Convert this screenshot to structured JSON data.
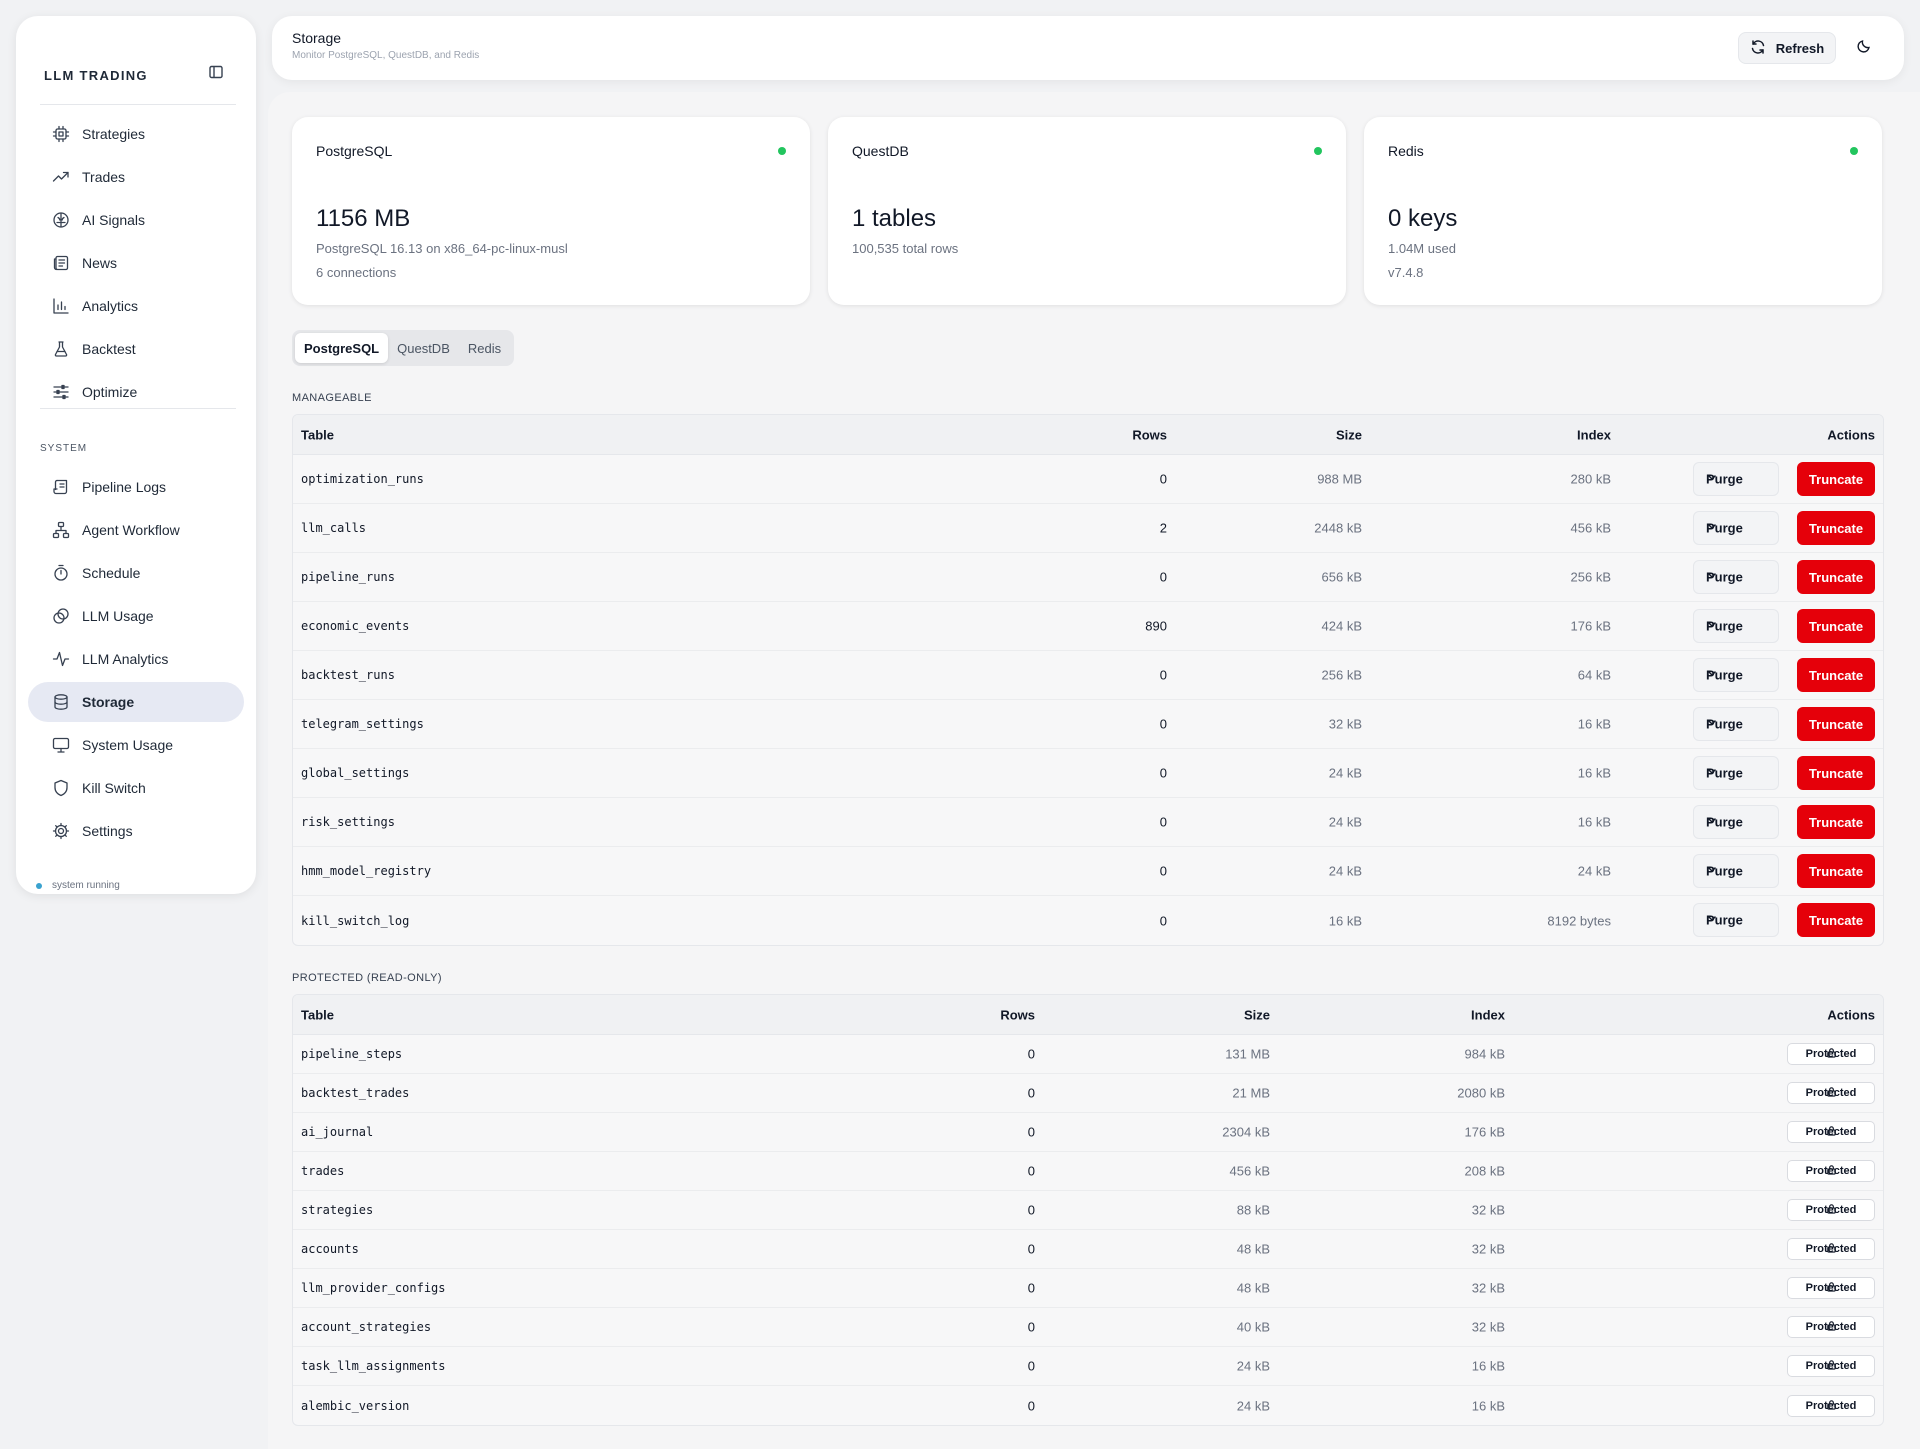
{
  "sidebar": {
    "brand": "LLM TRADING",
    "items": [
      {
        "label": "Strategies",
        "icon": "cpu-icon"
      },
      {
        "label": "Trades",
        "icon": "trend-up-icon"
      },
      {
        "label": "AI Signals",
        "icon": "brain-icon"
      },
      {
        "label": "News",
        "icon": "newspaper-icon"
      },
      {
        "label": "Analytics",
        "icon": "bar-chart-icon"
      },
      {
        "label": "Backtest",
        "icon": "flask-icon"
      },
      {
        "label": "Optimize",
        "icon": "sliders-icon"
      }
    ],
    "system_label": "SYSTEM",
    "system_items": [
      {
        "label": "Pipeline Logs",
        "icon": "scroll-icon"
      },
      {
        "label": "Agent Workflow",
        "icon": "workflow-icon"
      },
      {
        "label": "Schedule",
        "icon": "timer-icon"
      },
      {
        "label": "LLM Usage",
        "icon": "coins-icon"
      },
      {
        "label": "LLM Analytics",
        "icon": "activity-icon"
      },
      {
        "label": "Storage",
        "icon": "database-icon",
        "active": true
      },
      {
        "label": "System Usage",
        "icon": "monitor-icon"
      },
      {
        "label": "Kill Switch",
        "icon": "shield-icon"
      },
      {
        "label": "Settings",
        "icon": "gear-icon"
      }
    ],
    "status": "system running"
  },
  "header": {
    "title": "Storage",
    "subtitle": "Monitor PostgreSQL, QuestDB, and Redis",
    "refresh_label": "Refresh"
  },
  "cards": [
    {
      "name": "PostgreSQL",
      "value": "1156 MB",
      "line1": "PostgreSQL 16.13 on x86_64-pc-linux-musl",
      "line2": "6 connections",
      "status_color": "#22c55e"
    },
    {
      "name": "QuestDB",
      "value": "1 tables",
      "line1": "100,535 total rows",
      "line2": "",
      "status_color": "#22c55e"
    },
    {
      "name": "Redis",
      "value": "0 keys",
      "line1": "1.04M used",
      "line2": "v7.4.8",
      "status_color": "#22c55e"
    }
  ],
  "tabs": [
    "PostgreSQL",
    "QuestDB",
    "Redis"
  ],
  "manageable": {
    "title": "MANAGEABLE",
    "headers": {
      "table": "Table",
      "rows": "Rows",
      "size": "Size",
      "index": "Index",
      "actions": "Actions"
    },
    "purge_label": "Purge",
    "truncate_label": "Truncate",
    "rows": [
      {
        "table": "optimization_runs",
        "rows": "0",
        "size": "988 MB",
        "index": "280 kB"
      },
      {
        "table": "llm_calls",
        "rows": "2",
        "size": "2448 kB",
        "index": "456 kB"
      },
      {
        "table": "pipeline_runs",
        "rows": "0",
        "size": "656 kB",
        "index": "256 kB"
      },
      {
        "table": "economic_events",
        "rows": "890",
        "size": "424 kB",
        "index": "176 kB"
      },
      {
        "table": "backtest_runs",
        "rows": "0",
        "size": "256 kB",
        "index": "64 kB"
      },
      {
        "table": "telegram_settings",
        "rows": "0",
        "size": "32 kB",
        "index": "16 kB"
      },
      {
        "table": "global_settings",
        "rows": "0",
        "size": "24 kB",
        "index": "16 kB"
      },
      {
        "table": "risk_settings",
        "rows": "0",
        "size": "24 kB",
        "index": "16 kB"
      },
      {
        "table": "hmm_model_registry",
        "rows": "0",
        "size": "24 kB",
        "index": "24 kB"
      },
      {
        "table": "kill_switch_log",
        "rows": "0",
        "size": "16 kB",
        "index": "8192 bytes"
      }
    ]
  },
  "protected": {
    "title": "PROTECTED (READ-ONLY)",
    "headers": {
      "table": "Table",
      "rows": "Rows",
      "size": "Size",
      "index": "Index",
      "actions": "Actions"
    },
    "badge_label": "Protected",
    "rows": [
      {
        "table": "pipeline_steps",
        "rows": "0",
        "size": "131 MB",
        "index": "984 kB"
      },
      {
        "table": "backtest_trades",
        "rows": "0",
        "size": "21 MB",
        "index": "2080 kB"
      },
      {
        "table": "ai_journal",
        "rows": "0",
        "size": "2304 kB",
        "index": "176 kB"
      },
      {
        "table": "trades",
        "rows": "0",
        "size": "456 kB",
        "index": "208 kB"
      },
      {
        "table": "strategies",
        "rows": "0",
        "size": "88 kB",
        "index": "32 kB"
      },
      {
        "table": "accounts",
        "rows": "0",
        "size": "48 kB",
        "index": "32 kB"
      },
      {
        "table": "llm_provider_configs",
        "rows": "0",
        "size": "48 kB",
        "index": "32 kB"
      },
      {
        "table": "account_strategies",
        "rows": "0",
        "size": "40 kB",
        "index": "32 kB"
      },
      {
        "table": "task_llm_assignments",
        "rows": "0",
        "size": "24 kB",
        "index": "16 kB"
      },
      {
        "table": "alembic_version",
        "rows": "0",
        "size": "24 kB",
        "index": "16 kB"
      }
    ]
  }
}
